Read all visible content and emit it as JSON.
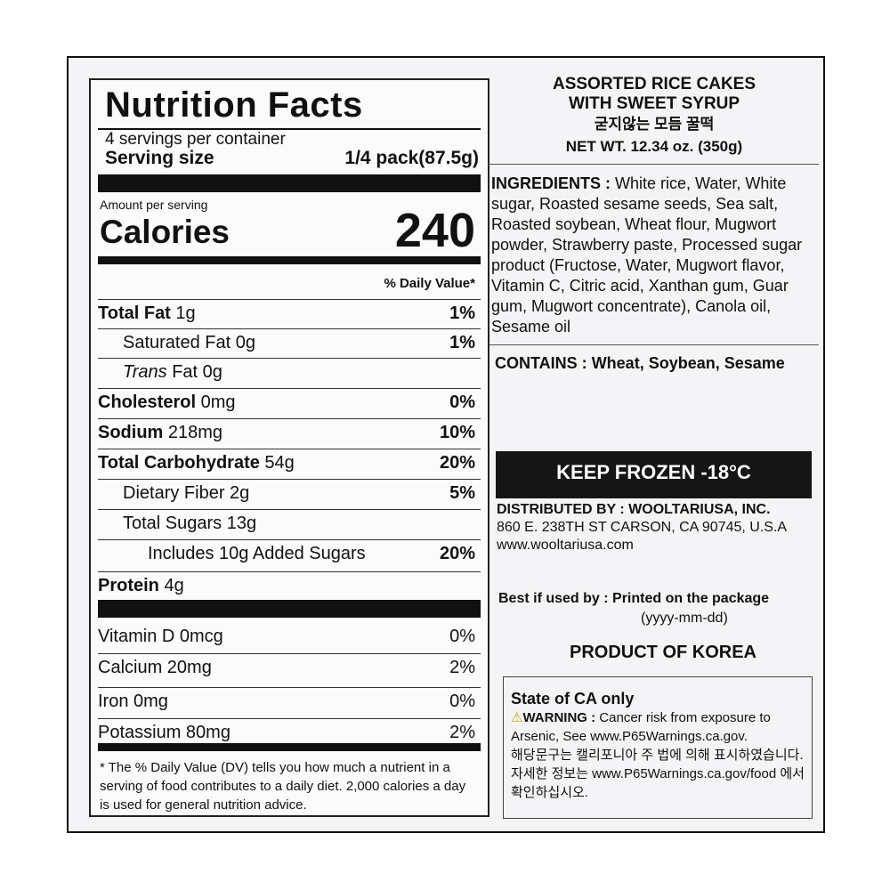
{
  "nutrition": {
    "title": "Nutrition Facts",
    "servings": "4 servings per container",
    "serving_size_label": "Serving size",
    "serving_size": "1/4 pack(87.5g)",
    "amount_per_serving": "Amount per serving",
    "calories_label": "Calories",
    "calories": "240",
    "dv_header": "% Daily Value*",
    "rows": [
      {
        "name": "Total Fat",
        "amount": "1g",
        "dv": "1%",
        "bold": true,
        "indent": 0
      },
      {
        "name": "Saturated Fat",
        "amount": "0g",
        "dv": "1%",
        "bold": false,
        "indent": 1
      },
      {
        "name": "Trans Fat",
        "amount": "0g",
        "dv": "",
        "bold": false,
        "indent": 1,
        "italic_prefix": "Trans"
      },
      {
        "name": "Cholesterol",
        "amount": "0mg",
        "dv": "0%",
        "bold": true,
        "indent": 0
      },
      {
        "name": "Sodium",
        "amount": "218mg",
        "dv": "10%",
        "bold": true,
        "indent": 0
      },
      {
        "name": "Total Carbohydrate",
        "amount": "54g",
        "dv": "20%",
        "bold": true,
        "indent": 0
      },
      {
        "name": "Dietary Fiber",
        "amount": "2g",
        "dv": "5%",
        "bold": false,
        "indent": 1
      },
      {
        "name": "Total Sugars",
        "amount": "13g",
        "dv": "",
        "bold": false,
        "indent": 1
      },
      {
        "name": "Includes 10g Added Sugars",
        "amount": "",
        "dv": "20%",
        "bold": false,
        "indent": 2
      },
      {
        "name": "Protein",
        "amount": "4g",
        "dv": "",
        "bold": true,
        "indent": 0
      }
    ],
    "vitamins": [
      {
        "name": "Vitamin D 0mcg",
        "dv": "0%"
      },
      {
        "name": "Calcium 20mg",
        "dv": "2%"
      },
      {
        "name": "Iron 0mg",
        "dv": "0%"
      },
      {
        "name": "Potassium 80mg",
        "dv": "2%"
      }
    ],
    "footnote": "* The % Daily Value (DV) tells you how much a nutrient in a serving of food contributes to a daily diet. 2,000 calories a day is used for general nutrition advice."
  },
  "product": {
    "name_line1": "ASSORTED RICE CAKES",
    "name_line2": "WITH SWEET SYRUP",
    "name_korean": "굳지않는 모듬 꿀떡",
    "net_wt": "NET WT. 12.34 oz. (350g)",
    "ingredients_label": "INGREDIENTS :",
    "ingredients": "White rice, Water, White sugar, Roasted sesame seeds, Sea salt, Roasted soybean, Wheat flour, Mugwort powder, Strawberry paste, Processed sugar product (Fructose, Water, Mugwort flavor, Vitamin C, Citric acid, Xanthan gum, Guar gum, Mugwort concentrate), Canola oil, Sesame oil",
    "contains_label": "CONTAINS :",
    "contains": "Wheat, Soybean, Sesame",
    "keep_frozen": "KEEP FROZEN -18°C",
    "distributed_label": "DISTRIBUTED BY : WOOLTARIUSA, INC.",
    "address": "860 E.  238TH ST CARSON,  CA 90745, U.S.A",
    "website": "www.wooltariusa.com",
    "best_label": "Best if used by :",
    "best_value": "Printed on the package",
    "date_format": "(yyyy-mm-dd)",
    "origin": "PRODUCT OF KOREA"
  },
  "warning": {
    "title": "State of CA only",
    "icon": "warning-triangle-icon",
    "label": "WARNING :",
    "text": "Cancer risk from exposure to Arsenic, See www.P65Warnings.ca.gov.",
    "korean1": "해당문구는 캘리포니아 주 법에 의해 표시하였습니다.",
    "korean2": "자세한 정보는 www.P65Warnings.ca.gov/food 에서 확인하십시오."
  }
}
